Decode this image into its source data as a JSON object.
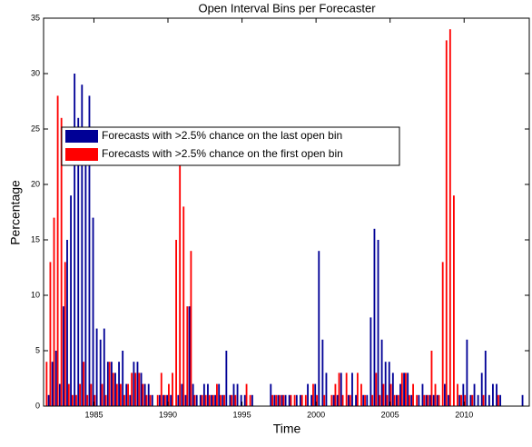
{
  "chart_data": {
    "type": "bar",
    "title": "Open Interval Bins per Forecaster",
    "xlabel": "Time",
    "ylabel": "Percentage",
    "x": [
      1981.75,
      1982,
      1982.25,
      1982.5,
      1982.75,
      1983,
      1983.25,
      1983.5,
      1983.75,
      1984,
      1984.25,
      1984.5,
      1984.75,
      1985,
      1985.25,
      1985.5,
      1985.75,
      1986,
      1986.25,
      1986.5,
      1986.75,
      1987,
      1987.25,
      1987.5,
      1987.75,
      1988,
      1988.25,
      1988.5,
      1988.75,
      1989,
      1989.25,
      1989.5,
      1989.75,
      1990,
      1990.25,
      1990.5,
      1990.75,
      1991,
      1991.25,
      1991.5,
      1991.75,
      1992,
      1992.25,
      1992.5,
      1992.75,
      1993,
      1993.25,
      1993.5,
      1993.75,
      1994,
      1994.25,
      1994.5,
      1994.75,
      1995,
      1995.25,
      1995.5,
      1995.75,
      1996,
      1996.25,
      1996.5,
      1996.75,
      1997,
      1997.25,
      1997.5,
      1997.75,
      1998,
      1998.25,
      1998.5,
      1998.75,
      1999,
      1999.25,
      1999.5,
      1999.75,
      2000,
      2000.25,
      2000.5,
      2000.75,
      2001,
      2001.25,
      2001.5,
      2001.75,
      2002,
      2002.25,
      2002.5,
      2002.75,
      2003,
      2003.25,
      2003.5,
      2003.75,
      2004,
      2004.25,
      2004.5,
      2004.75,
      2005,
      2005.25,
      2005.5,
      2005.75,
      2006,
      2006.25,
      2006.5,
      2006.75,
      2007,
      2007.25,
      2007.5,
      2007.75,
      2008,
      2008.25,
      2008.5,
      2008.75,
      2009,
      2009.25,
      2009.5,
      2009.75,
      2010,
      2010.25,
      2010.5,
      2010.75,
      2011,
      2011.25,
      2011.5,
      2011.75,
      2012,
      2012.25,
      2012.5,
      2012.75,
      2013,
      2013.25,
      2013.5,
      2013.75,
      2014
    ],
    "series": [
      {
        "name": "Forecasts with >2.5% chance on the last open bin",
        "color": "#000096",
        "values": [
          0,
          1,
          4,
          5,
          2,
          9,
          15,
          19,
          30,
          26,
          29,
          25,
          28,
          17,
          7,
          6,
          7,
          4,
          4,
          3,
          4,
          5,
          2,
          1,
          4,
          4,
          3,
          2,
          2,
          1,
          0,
          1,
          1,
          1,
          1,
          0,
          1,
          2,
          1,
          9,
          2,
          1,
          1,
          2,
          2,
          1,
          1,
          2,
          1,
          5,
          1,
          2,
          2,
          1,
          1,
          0,
          1,
          0,
          0,
          0,
          0,
          2,
          1,
          1,
          1,
          1,
          1,
          0,
          1,
          1,
          0,
          2,
          1,
          2,
          14,
          6,
          3,
          0,
          1,
          1,
          3,
          0,
          1,
          3,
          1,
          0,
          1,
          1,
          8,
          16,
          15,
          6,
          4,
          4,
          3,
          1,
          2,
          3,
          3,
          1,
          0,
          1,
          2,
          1,
          1,
          1,
          1,
          0,
          2,
          1,
          0,
          0,
          1,
          2,
          6,
          1,
          2,
          1,
          3,
          5,
          1,
          2,
          2,
          1,
          0,
          0,
          0,
          0,
          0,
          1
        ]
      },
      {
        "name": "Forecasts with >2.5% chance on the first open bin",
        "color": "#ff0000",
        "values": [
          4,
          13,
          17,
          28,
          26,
          13,
          2,
          1,
          1,
          2,
          4,
          1,
          2,
          1,
          0,
          2,
          1,
          4,
          3,
          2,
          2,
          1,
          2,
          3,
          3,
          3,
          2,
          1,
          1,
          0,
          1,
          3,
          1,
          2,
          3,
          15,
          22,
          18,
          9,
          14,
          1,
          0,
          1,
          1,
          1,
          1,
          2,
          1,
          1,
          0,
          1,
          1,
          0,
          0,
          2,
          1,
          0,
          0,
          0,
          0,
          0,
          1,
          1,
          1,
          1,
          0,
          1,
          1,
          0,
          1,
          1,
          0,
          2,
          1,
          0,
          1,
          0,
          1,
          2,
          3,
          1,
          3,
          1,
          0,
          3,
          2,
          1,
          0,
          1,
          3,
          1,
          2,
          1,
          2,
          1,
          1,
          3,
          3,
          1,
          2,
          1,
          0,
          1,
          1,
          5,
          2,
          1,
          13,
          33,
          34,
          19,
          2,
          1,
          1,
          0,
          1,
          0,
          0,
          1,
          0,
          0,
          0,
          1,
          0,
          0,
          0,
          0,
          0,
          0,
          0
        ]
      }
    ],
    "xlim": [
      1981.6,
      2014.4
    ],
    "xticks": [
      1985,
      1990,
      1995,
      2000,
      2005,
      2010
    ],
    "ylim": [
      0,
      35
    ],
    "yticks": [
      0,
      5,
      10,
      15,
      20,
      25,
      30,
      35
    ]
  }
}
